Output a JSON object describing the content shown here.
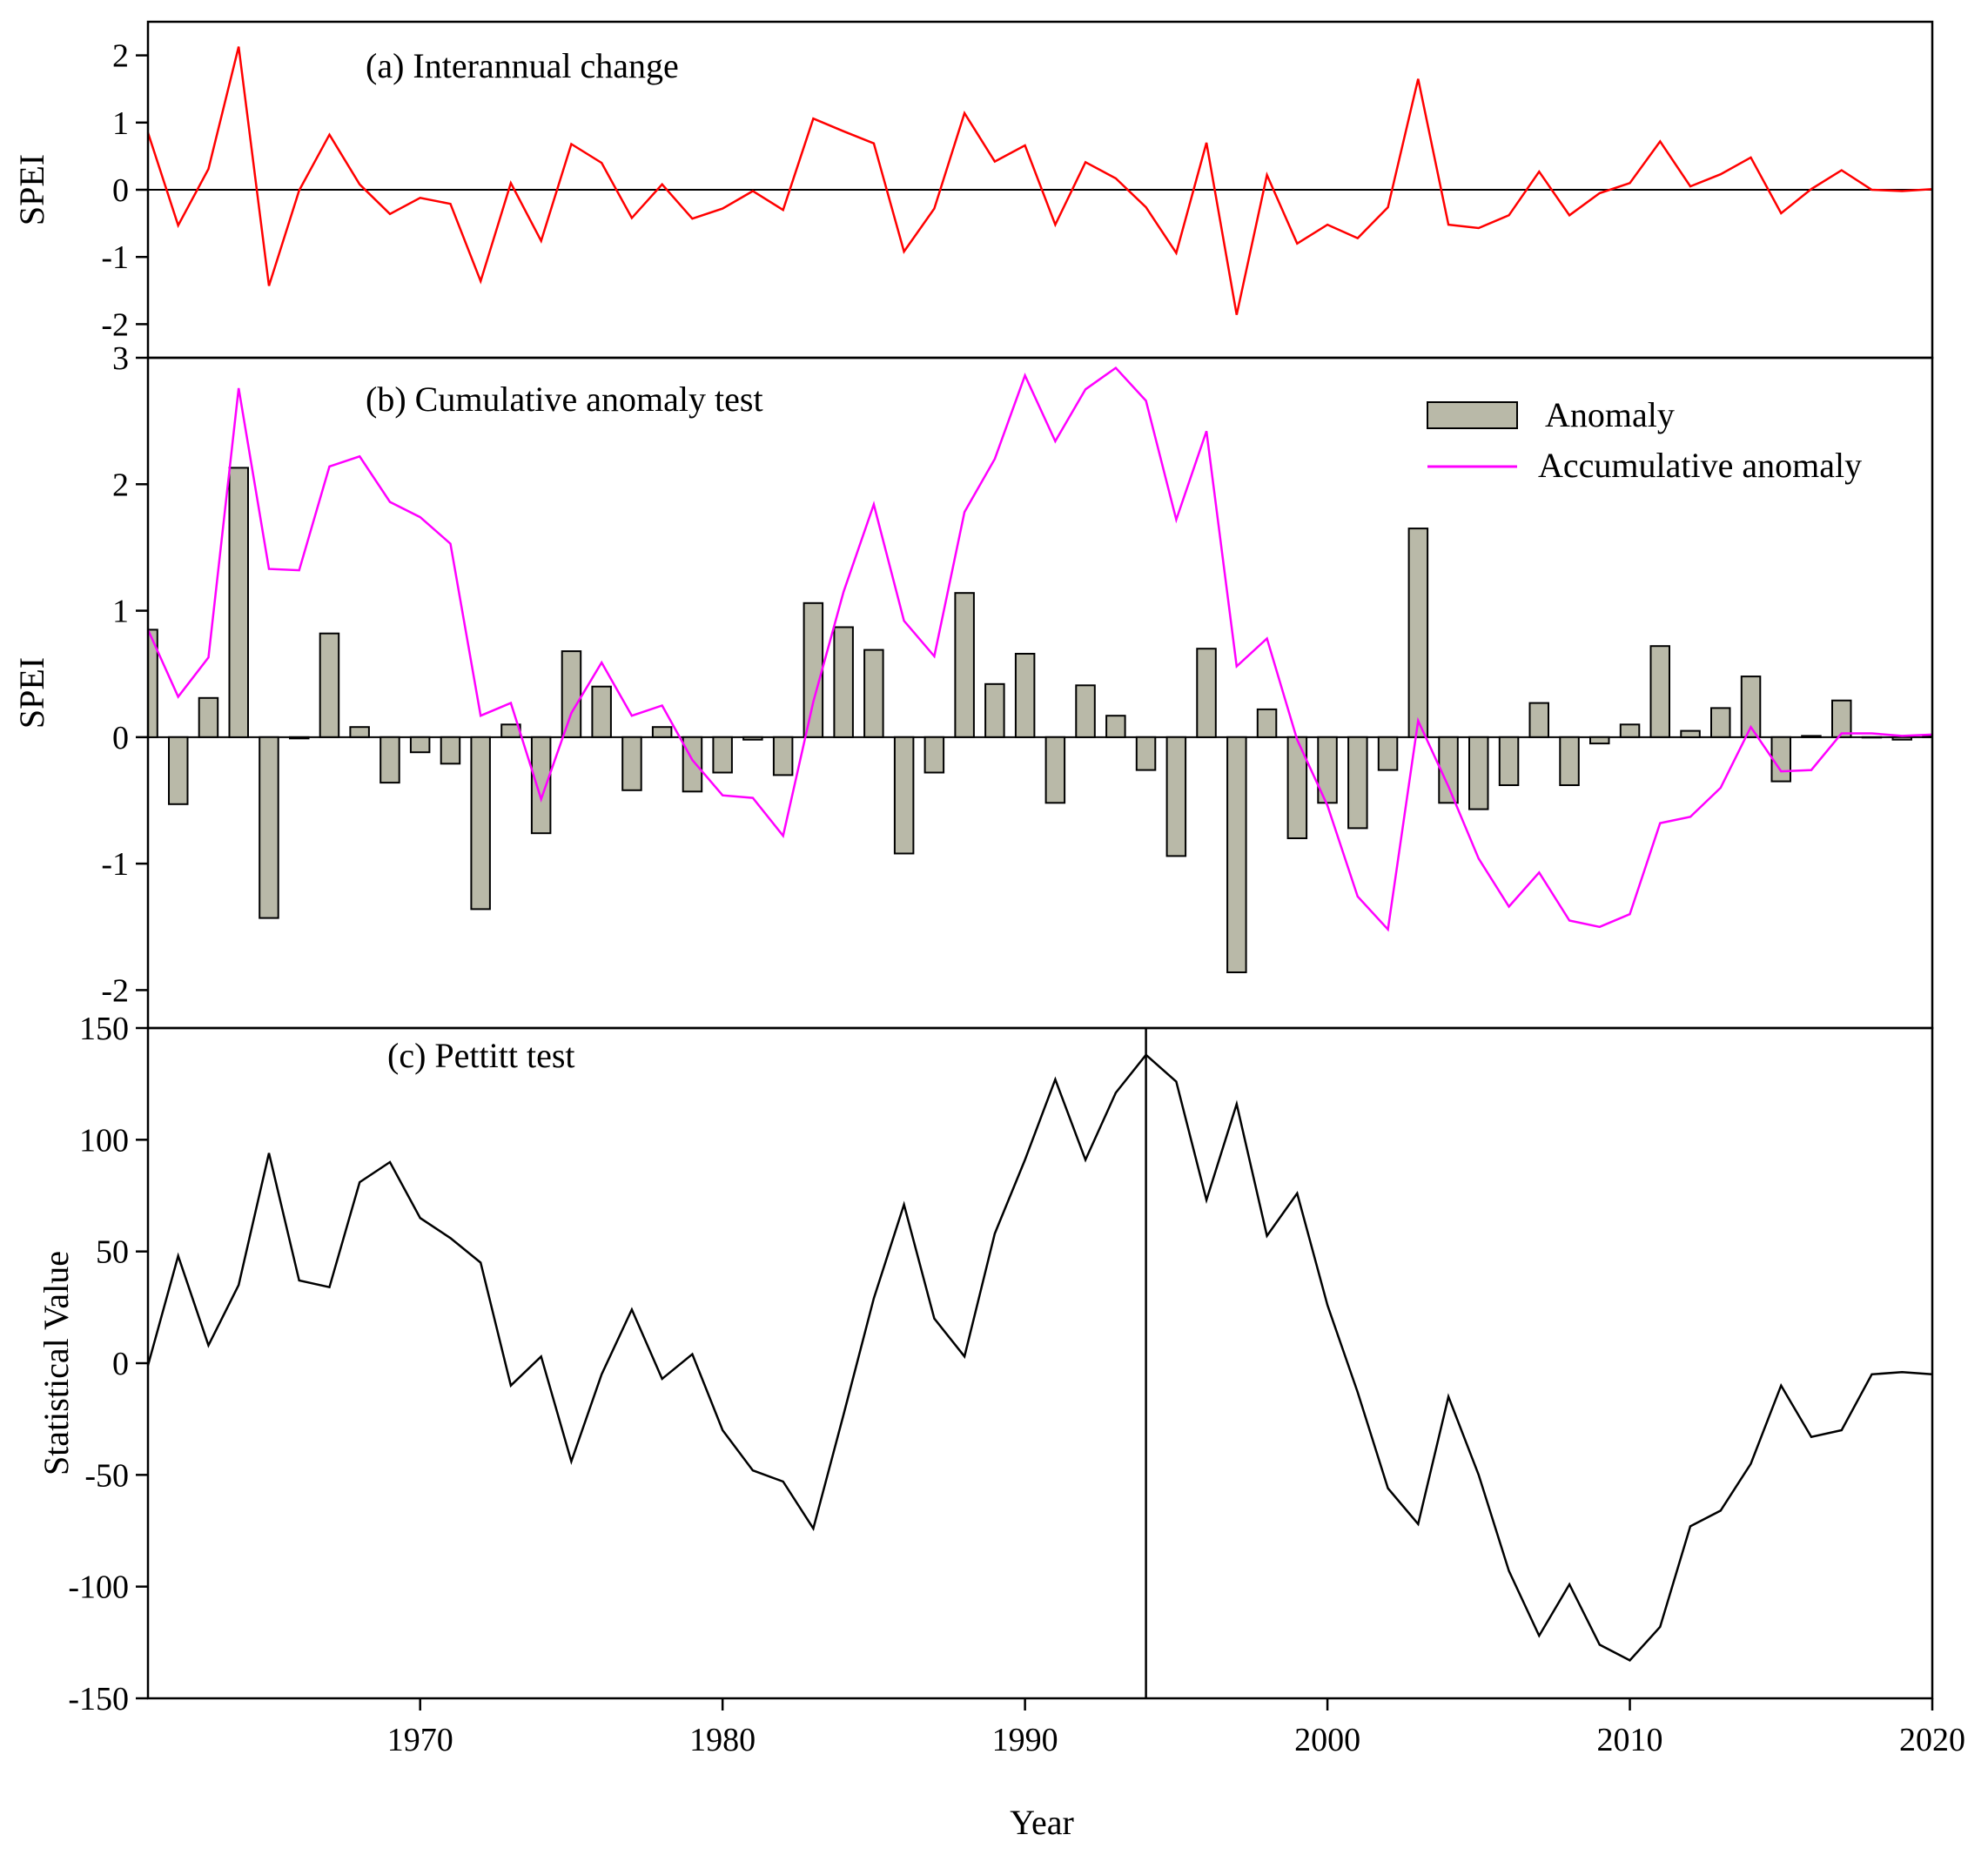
{
  "chart_data": [
    {
      "id": "a",
      "type": "line",
      "title": "(a) Interannual change",
      "ylabel": "SPEI",
      "xlabel": "",
      "xlim": [
        1961,
        2020
      ],
      "ylim": [
        -2.5,
        2.5
      ],
      "yticks": [
        2,
        1,
        0,
        -1,
        -2
      ],
      "reference_line_y": 0,
      "series": [
        {
          "name": "SPEI",
          "color": "#ff0000",
          "x": [
            1961,
            1962,
            1963,
            1964,
            1965,
            1966,
            1967,
            1968,
            1969,
            1970,
            1971,
            1972,
            1973,
            1974,
            1975,
            1976,
            1977,
            1978,
            1979,
            1980,
            1981,
            1982,
            1983,
            1984,
            1985,
            1986,
            1987,
            1988,
            1989,
            1990,
            1991,
            1992,
            1993,
            1994,
            1995,
            1996,
            1997,
            1998,
            1999,
            2000,
            2001,
            2002,
            2003,
            2004,
            2005,
            2006,
            2007,
            2008,
            2009,
            2010,
            2011,
            2012,
            2013,
            2014,
            2015,
            2016,
            2017,
            2018,
            2019,
            2020
          ],
          "values": [
            0.85,
            -0.53,
            0.31,
            2.13,
            -1.43,
            -0.01,
            0.82,
            0.08,
            -0.36,
            -0.12,
            -0.21,
            -1.36,
            0.1,
            -0.76,
            0.68,
            0.4,
            -0.42,
            0.08,
            -0.43,
            -0.28,
            -0.02,
            -0.3,
            1.06,
            0.87,
            0.69,
            -0.92,
            -0.28,
            1.14,
            0.42,
            0.66,
            -0.52,
            0.41,
            0.17,
            -0.26,
            -0.94,
            0.7,
            -1.86,
            0.22,
            -0.8,
            -0.52,
            -0.72,
            -0.26,
            1.65,
            -0.52,
            -0.57,
            -0.38,
            0.27,
            -0.38,
            -0.05,
            0.1,
            0.72,
            0.05,
            0.23,
            0.48,
            -0.35,
            0.01,
            0.29,
            0.0,
            -0.02,
            0.01
          ]
        }
      ]
    },
    {
      "id": "b",
      "type": "bar+line",
      "title": "(b) Cumulative anomaly test",
      "ylabel": "SPEI",
      "xlabel": "",
      "xlim": [
        1961,
        2020
      ],
      "ylim": [
        -2.3,
        3
      ],
      "yticks": [
        3,
        2,
        1,
        0,
        -1,
        -2
      ],
      "legend": {
        "position": "top-right"
      },
      "series": [
        {
          "name": "Anomaly",
          "kind": "bar",
          "color": "#b9b9a8",
          "x": [
            1961,
            1962,
            1963,
            1964,
            1965,
            1966,
            1967,
            1968,
            1969,
            1970,
            1971,
            1972,
            1973,
            1974,
            1975,
            1976,
            1977,
            1978,
            1979,
            1980,
            1981,
            1982,
            1983,
            1984,
            1985,
            1986,
            1987,
            1988,
            1989,
            1990,
            1991,
            1992,
            1993,
            1994,
            1995,
            1996,
            1997,
            1998,
            1999,
            2000,
            2001,
            2002,
            2003,
            2004,
            2005,
            2006,
            2007,
            2008,
            2009,
            2010,
            2011,
            2012,
            2013,
            2014,
            2015,
            2016,
            2017,
            2018,
            2019,
            2020
          ],
          "values": [
            0.85,
            -0.53,
            0.31,
            2.13,
            -1.43,
            -0.01,
            0.82,
            0.08,
            -0.36,
            -0.12,
            -0.21,
            -1.36,
            0.1,
            -0.76,
            0.68,
            0.4,
            -0.42,
            0.08,
            -0.43,
            -0.28,
            -0.02,
            -0.3,
            1.06,
            0.87,
            0.69,
            -0.92,
            -0.28,
            1.14,
            0.42,
            0.66,
            -0.52,
            0.41,
            0.17,
            -0.26,
            -0.94,
            0.7,
            -1.86,
            0.22,
            -0.8,
            -0.52,
            -0.72,
            -0.26,
            1.65,
            -0.52,
            -0.57,
            -0.38,
            0.27,
            -0.38,
            -0.05,
            0.1,
            0.72,
            0.05,
            0.23,
            0.48,
            -0.35,
            0.01,
            0.29,
            0.0,
            -0.02,
            0.01
          ]
        },
        {
          "name": "Accumulative anomaly",
          "kind": "line",
          "color": "#ff00ff",
          "x": [
            1961,
            1962,
            1963,
            1964,
            1965,
            1966,
            1967,
            1968,
            1969,
            1970,
            1971,
            1972,
            1973,
            1974,
            1975,
            1976,
            1977,
            1978,
            1979,
            1980,
            1981,
            1982,
            1983,
            1984,
            1985,
            1986,
            1987,
            1988,
            1989,
            1990,
            1991,
            1992,
            1993,
            1994,
            1995,
            1996,
            1997,
            1998,
            1999,
            2000,
            2001,
            2002,
            2003,
            2004,
            2005,
            2006,
            2007,
            2008,
            2009,
            2010,
            2011,
            2012,
            2013,
            2014,
            2015,
            2016,
            2017,
            2018,
            2019,
            2020
          ],
          "values": [
            0.85,
            0.32,
            0.63,
            2.76,
            1.33,
            1.32,
            2.14,
            2.22,
            1.86,
            1.74,
            1.53,
            0.17,
            0.27,
            -0.49,
            0.19,
            0.59,
            0.17,
            0.25,
            -0.18,
            -0.46,
            -0.48,
            -0.78,
            0.28,
            1.15,
            1.84,
            0.92,
            0.64,
            1.78,
            2.2,
            2.86,
            2.34,
            2.75,
            2.92,
            2.66,
            1.72,
            2.42,
            0.56,
            0.78,
            -0.02,
            -0.54,
            -1.26,
            -1.52,
            0.13,
            -0.39,
            -0.96,
            -1.34,
            -1.07,
            -1.45,
            -1.5,
            -1.4,
            -0.68,
            -0.63,
            -0.4,
            0.08,
            -0.27,
            -0.26,
            0.03,
            0.03,
            0.01,
            0.02
          ]
        }
      ]
    },
    {
      "id": "c",
      "type": "line",
      "title": "(c) Pettitt test",
      "ylabel": "Statistical Value",
      "xlabel": "Year",
      "xlim": [
        1961,
        2020
      ],
      "ylim": [
        -150,
        150
      ],
      "yticks": [
        150,
        100,
        50,
        0,
        -50,
        -100,
        -150
      ],
      "xticks": [
        1970,
        1980,
        1990,
        2000,
        2010,
        2020
      ],
      "change_point_year": 1994,
      "series": [
        {
          "name": "Pettitt statistic",
          "color": "#000000",
          "x": [
            1961,
            1962,
            1963,
            1964,
            1965,
            1966,
            1967,
            1968,
            1969,
            1970,
            1971,
            1972,
            1973,
            1974,
            1975,
            1976,
            1977,
            1978,
            1979,
            1980,
            1981,
            1982,
            1983,
            1984,
            1985,
            1986,
            1987,
            1988,
            1989,
            1990,
            1991,
            1992,
            1993,
            1994,
            1995,
            1996,
            1997,
            1998,
            1999,
            2000,
            2001,
            2002,
            2003,
            2004,
            2005,
            2006,
            2007,
            2008,
            2009,
            2010,
            2011,
            2012,
            2013,
            2014,
            2015,
            2016,
            2017,
            2018,
            2019,
            2020
          ],
          "values": [
            -1,
            48,
            8,
            35,
            94,
            37,
            34,
            81,
            90,
            65,
            56,
            45,
            -10,
            3,
            -44,
            -5,
            24,
            -7,
            4,
            -30,
            -48,
            -53,
            -74,
            -23,
            29,
            71,
            20,
            3,
            58,
            91,
            127,
            91,
            121,
            138,
            126,
            73,
            116,
            57,
            76,
            26,
            -13,
            -56,
            -72,
            -15,
            -50,
            -93,
            -122,
            -99,
            -126,
            -133,
            -118,
            -73,
            -66,
            -45,
            -10,
            -33,
            -30,
            -5,
            -4,
            -5
          ]
        }
      ]
    }
  ]
}
